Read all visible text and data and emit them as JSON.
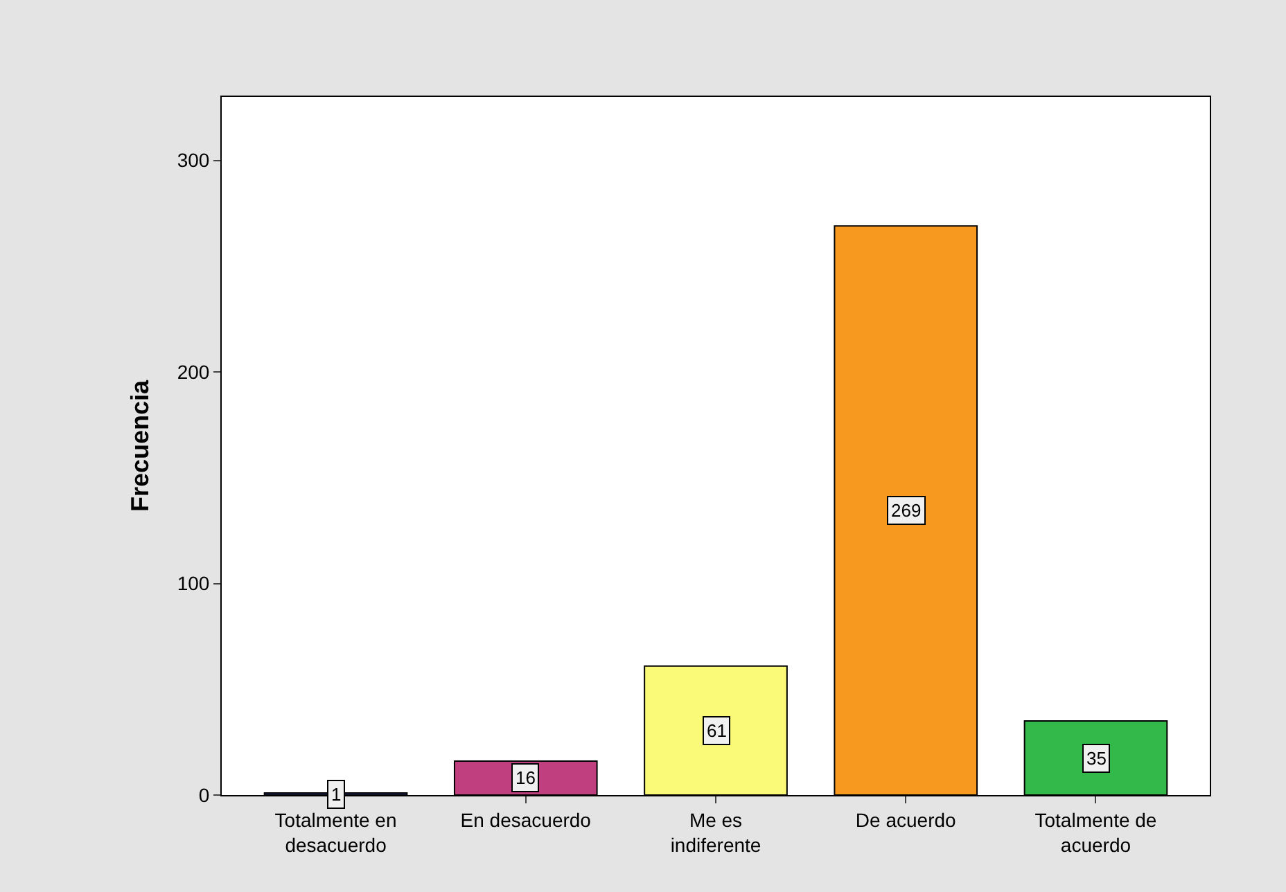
{
  "chart_data": {
    "type": "bar",
    "ylabel": "Frecuencia",
    "categories": [
      "Totalmente en desacuerdo",
      "En desacuerdo",
      "Me es indiferente",
      "De acuerdo",
      "Totalmente de acuerdo"
    ],
    "values": [
      1,
      16,
      61,
      269,
      35
    ],
    "colors": [
      "#2b3a7a",
      "#c0407f",
      "#fafa78",
      "#f7991f",
      "#33b84a"
    ],
    "ylim": [
      0,
      330
    ],
    "yticks": [
      0,
      100,
      200,
      300
    ],
    "data_labels": true
  }
}
